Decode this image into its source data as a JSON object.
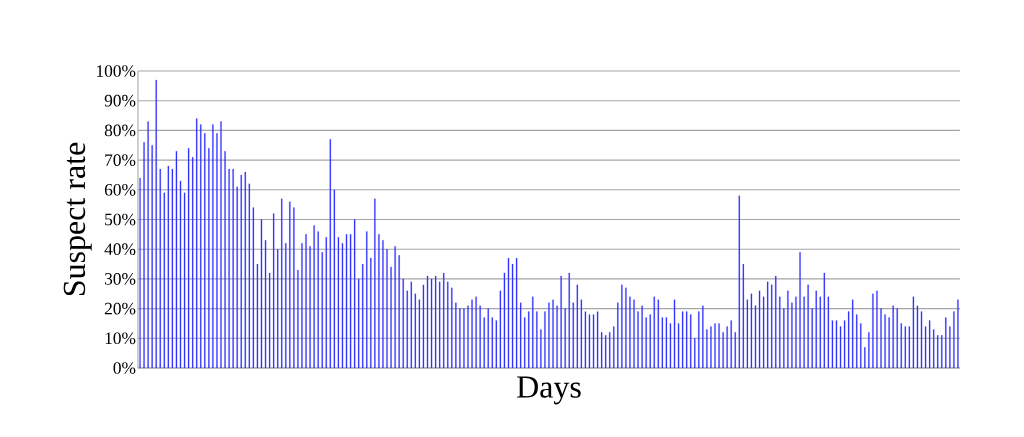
{
  "chart_data": {
    "type": "bar",
    "xlabel": "Days",
    "ylabel": "Suspect rate",
    "color": "#3333ff",
    "categories": [
      null,
      null,
      null,
      null,
      null,
      null,
      null,
      null,
      null,
      null,
      null,
      null,
      null,
      null,
      null,
      null,
      null,
      null,
      null,
      null,
      null,
      null,
      null,
      null,
      null,
      null,
      null,
      null,
      null,
      null,
      null,
      null,
      null,
      null,
      null,
      null,
      null,
      null,
      null,
      null,
      null,
      null,
      null,
      null,
      null,
      null,
      null,
      null,
      null,
      null,
      null,
      null,
      null,
      null,
      null,
      null,
      null,
      null,
      null,
      null,
      null,
      null,
      null,
      null,
      null,
      null,
      null,
      null,
      null,
      null,
      null,
      null,
      null,
      null,
      null,
      null,
      null,
      null,
      null,
      null,
      null,
      null,
      null,
      null,
      null,
      null,
      null,
      null,
      null,
      null,
      null,
      null,
      null,
      null,
      null,
      null,
      null,
      null,
      null,
      null,
      null,
      null,
      null,
      null,
      null,
      null,
      null,
      null,
      null,
      null,
      null,
      null,
      null,
      null,
      null,
      null,
      null,
      null,
      null,
      null,
      null,
      null,
      null,
      null,
      null,
      null,
      null,
      null,
      null,
      null,
      null,
      null,
      null,
      null,
      null,
      null,
      null,
      null,
      null,
      null,
      null,
      null,
      null,
      null,
      null,
      null,
      null,
      null,
      null,
      null,
      null,
      null,
      null,
      null,
      null,
      null,
      null,
      null,
      null,
      null,
      null,
      null,
      null,
      null,
      null,
      null,
      null,
      null,
      null,
      null,
      null,
      null,
      null,
      null,
      null,
      null,
      null,
      null,
      null,
      null,
      null,
      null,
      null,
      null,
      null,
      null,
      null,
      null,
      null,
      null,
      null,
      null,
      null,
      null,
      null,
      null,
      null,
      null,
      null,
      null,
      null,
      null,
      null
    ],
    "values": [
      64,
      76,
      83,
      75,
      97,
      67,
      59,
      68,
      67,
      73,
      63,
      59,
      74,
      71,
      84,
      82,
      79,
      74,
      82,
      79,
      83,
      73,
      67,
      67,
      61,
      65,
      66,
      62,
      54,
      35,
      50,
      43,
      32,
      52,
      40,
      57,
      42,
      56,
      54,
      33,
      42,
      45,
      41,
      48,
      46,
      39,
      44,
      77,
      60,
      44,
      42,
      45,
      45,
      50,
      30,
      35,
      46,
      37,
      57,
      45,
      43,
      40,
      34,
      41,
      38,
      30,
      26,
      29,
      25,
      23,
      28,
      31,
      30,
      31,
      29,
      32,
      29,
      27,
      22,
      20,
      20,
      21,
      23,
      24,
      21,
      17,
      20,
      17,
      16,
      26,
      32,
      37,
      35,
      37,
      22,
      17,
      19,
      24,
      19,
      13,
      19,
      22,
      23,
      21,
      31,
      20,
      32,
      22,
      28,
      23,
      19,
      18,
      18,
      19,
      12,
      11,
      12,
      14,
      22,
      28,
      27,
      24,
      23,
      19,
      21,
      17,
      18,
      24,
      23,
      17,
      17,
      15,
      23,
      15,
      19,
      19,
      18,
      10,
      19,
      21,
      13,
      14,
      15,
      15,
      12,
      14,
      16,
      12,
      58,
      35,
      23,
      25,
      21,
      26,
      24,
      29,
      28,
      31,
      24,
      20,
      26,
      22,
      24,
      39,
      24,
      28,
      20,
      26,
      24,
      32,
      24,
      16,
      16,
      14,
      16,
      19,
      23,
      18,
      15,
      7,
      12,
      25,
      26,
      20,
      18,
      17,
      21,
      20,
      15,
      14,
      14,
      24,
      21,
      19,
      14,
      16,
      13,
      11,
      11,
      17,
      14,
      19,
      23
    ],
    "ylim": [
      0,
      100
    ],
    "yticks": [
      {
        "value": 0,
        "label": "0%"
      },
      {
        "value": 10,
        "label": "10%"
      },
      {
        "value": 20,
        "label": "20%"
      },
      {
        "value": 30,
        "label": "30%"
      },
      {
        "value": 40,
        "label": "40%"
      },
      {
        "value": 50,
        "label": "50%"
      },
      {
        "value": 60,
        "label": "60%"
      },
      {
        "value": 70,
        "label": "70%"
      },
      {
        "value": 80,
        "label": "80%"
      },
      {
        "value": 90,
        "label": "90%"
      },
      {
        "value": 100,
        "label": "100%"
      }
    ],
    "grid": "y",
    "tick_labels": "y"
  }
}
